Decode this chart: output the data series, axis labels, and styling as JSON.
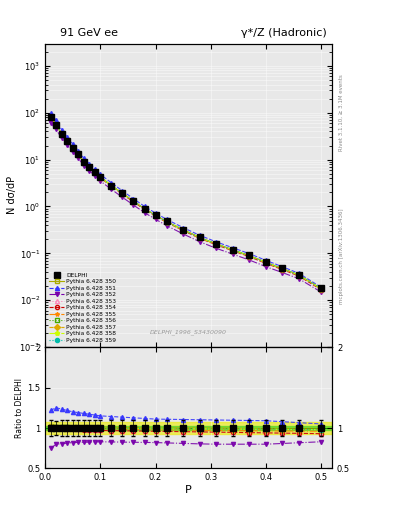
{
  "title_left": "91 GeV ee",
  "title_right": "γ*/Z (Hadronic)",
  "ylabel_main": "N dσ/dP",
  "ylabel_ratio": "Ratio to DELPHI",
  "xlabel": "P",
  "watermark": "DELPHI_1996_S3430090",
  "rivet_text": "Rivet 3.1.10, ≥ 3.1M events",
  "mcplots_text": "mcplots.cern.ch [arXiv:1306.3436]",
  "x_data": [
    0.01,
    0.02,
    0.03,
    0.04,
    0.05,
    0.06,
    0.07,
    0.08,
    0.09,
    0.1,
    0.12,
    0.14,
    0.16,
    0.18,
    0.2,
    0.22,
    0.25,
    0.28,
    0.31,
    0.34,
    0.37,
    0.4,
    0.43,
    0.46,
    0.5
  ],
  "delphi_y": [
    80,
    55,
    35,
    25,
    18,
    13,
    9,
    7,
    5.5,
    4.2,
    2.8,
    1.9,
    1.3,
    0.9,
    0.65,
    0.48,
    0.32,
    0.22,
    0.16,
    0.12,
    0.09,
    0.065,
    0.048,
    0.035,
    0.018
  ],
  "delphi_err": [
    8,
    5,
    3.5,
    2.5,
    1.8,
    1.3,
    0.9,
    0.7,
    0.55,
    0.42,
    0.28,
    0.19,
    0.13,
    0.09,
    0.065,
    0.048,
    0.032,
    0.022,
    0.016,
    0.012,
    0.009,
    0.0065,
    0.0048,
    0.0035,
    0.0018
  ],
  "series": [
    {
      "label": "Pythia 6.428 350",
      "color": "#aaaa00",
      "marker": "s",
      "mfc": "none",
      "ls": "-",
      "ratio_x": [
        0.0,
        0.01,
        0.05,
        0.1,
        0.2,
        0.3,
        0.4,
        0.5
      ],
      "ratio_y": [
        1.01,
        1.02,
        1.01,
        1.01,
        1.0,
        1.0,
        0.99,
        0.99
      ]
    },
    {
      "label": "Pythia 6.428 351",
      "color": "#3333ff",
      "marker": "^",
      "mfc": "#3333ff",
      "ls": "--",
      "ratio_x": [
        0.0,
        0.01,
        0.02,
        0.05,
        0.1,
        0.15,
        0.2,
        0.3,
        0.4,
        0.5
      ],
      "ratio_y": [
        1.05,
        1.22,
        1.25,
        1.2,
        1.15,
        1.13,
        1.11,
        1.1,
        1.09,
        1.05
      ]
    },
    {
      "label": "Pythia 6.428 352",
      "color": "#7700aa",
      "marker": "v",
      "mfc": "#7700aa",
      "ls": "-.",
      "ratio_x": [
        0.0,
        0.01,
        0.02,
        0.05,
        0.1,
        0.2,
        0.3,
        0.4,
        0.5
      ],
      "ratio_y": [
        0.95,
        0.75,
        0.8,
        0.82,
        0.83,
        0.82,
        0.8,
        0.8,
        0.83
      ]
    },
    {
      "label": "Pythia 6.428 353",
      "color": "#ff88bb",
      "marker": "^",
      "mfc": "none",
      "ls": ":",
      "ratio_x": [
        0.0,
        0.02,
        0.1,
        0.2,
        0.3,
        0.5
      ],
      "ratio_y": [
        1.0,
        1.01,
        0.97,
        0.96,
        0.95,
        0.93
      ]
    },
    {
      "label": "Pythia 6.428 354",
      "color": "#cc0000",
      "marker": "o",
      "mfc": "none",
      "ls": "--",
      "ratio_x": [
        0.0,
        0.02,
        0.1,
        0.2,
        0.3,
        0.5
      ],
      "ratio_y": [
        1.0,
        1.0,
        0.97,
        0.96,
        0.95,
        0.93
      ]
    },
    {
      "label": "Pythia 6.428 355",
      "color": "#ff8800",
      "marker": "*",
      "mfc": "#ff8800",
      "ls": "-.",
      "ratio_x": [
        0.0,
        0.02,
        0.1,
        0.2,
        0.3,
        0.5
      ],
      "ratio_y": [
        1.0,
        1.01,
        0.99,
        0.98,
        0.97,
        0.96
      ]
    },
    {
      "label": "Pythia 6.428 356",
      "color": "#44aa00",
      "marker": "s",
      "mfc": "none",
      "ls": ":",
      "ratio_x": [
        0.0,
        0.02,
        0.1,
        0.2,
        0.3,
        0.5
      ],
      "ratio_y": [
        1.0,
        1.01,
        1.0,
        0.99,
        0.99,
        0.98
      ]
    },
    {
      "label": "Pythia 6.428 357",
      "color": "#ddaa00",
      "marker": "D",
      "mfc": "#ddaa00",
      "ls": "--",
      "ratio_x": [
        0.0,
        0.02,
        0.1,
        0.2,
        0.3,
        0.5
      ],
      "ratio_y": [
        1.0,
        1.01,
        1.0,
        0.99,
        0.99,
        0.98
      ]
    },
    {
      "label": "Pythia 6.428 358",
      "color": "#ccff00",
      "marker": "p",
      "mfc": "#ccff00",
      "ls": "-.",
      "ratio_x": [
        0.0,
        0.02,
        0.1,
        0.2,
        0.3,
        0.5
      ],
      "ratio_y": [
        1.0,
        1.01,
        1.0,
        0.99,
        0.99,
        0.98
      ]
    },
    {
      "label": "Pythia 6.428 359",
      "color": "#00bbaa",
      "marker": "o",
      "mfc": "#00bbaa",
      "ls": ":",
      "ratio_x": [
        0.0,
        0.02,
        0.1,
        0.2,
        0.3,
        0.5
      ],
      "ratio_y": [
        1.0,
        1.01,
        1.0,
        0.99,
        0.99,
        0.98
      ]
    }
  ],
  "band_yellow_color": "#eeee00",
  "band_yellow_lo": 0.93,
  "band_yellow_hi": 1.07,
  "band_green_color": "#00cc00",
  "band_green_lo": 0.97,
  "band_green_hi": 1.03,
  "bg_color": "#e8e8e8",
  "ylim_main": [
    0.001,
    3000.0
  ],
  "ylim_ratio": [
    0.5,
    2.0
  ],
  "xlim": [
    0.0,
    0.52
  ]
}
